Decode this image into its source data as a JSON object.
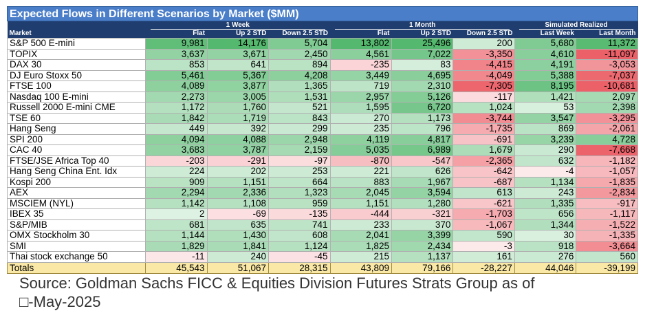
{
  "title": "Expected Flows in Different Scenarios by Market ($MM)",
  "groups": [
    "1 Week",
    "1 Month",
    "Simulated Realized"
  ],
  "columns": [
    "Market",
    "Flat",
    "Up 2 STD",
    "Down 2.5 STD",
    "Flat",
    "Up 2 STD",
    "Down 2.5 STD",
    "Last Week",
    "Last Month"
  ],
  "rows": [
    {
      "market": "S&P 500 E-mini",
      "values": [
        "9,981",
        "14,176",
        "5,704",
        "13,802",
        "25,496",
        "200",
        "5,680",
        "11,372"
      ]
    },
    {
      "market": "TOPIX",
      "values": [
        "3,637",
        "3,671",
        "2,450",
        "4,561",
        "7,022",
        "-3,350",
        "4,610",
        "-11,097"
      ]
    },
    {
      "market": "DAX 30",
      "values": [
        "853",
        "641",
        "894",
        "-235",
        "83",
        "-4,415",
        "4,191",
        "-3,053"
      ]
    },
    {
      "market": "DJ Euro Stoxx 50",
      "values": [
        "5,461",
        "5,367",
        "4,208",
        "3,449",
        "4,695",
        "-4,049",
        "5,388",
        "-7,037"
      ]
    },
    {
      "market": "FTSE 100",
      "values": [
        "4,089",
        "3,877",
        "1,365",
        "719",
        "2,310",
        "-7,305",
        "8,195",
        "-10,681"
      ]
    },
    {
      "market": "Nasdaq 100 E-mini",
      "values": [
        "2,273",
        "3,005",
        "1,531",
        "2,957",
        "5,126",
        "-117",
        "1,421",
        "2,097"
      ]
    },
    {
      "market": "Russell 2000 E-mini CME",
      "values": [
        "1,172",
        "1,760",
        "521",
        "1,595",
        "6,720",
        "1,024",
        "53",
        "2,398"
      ]
    },
    {
      "market": "TSE 60",
      "values": [
        "1,842",
        "1,719",
        "843",
        "270",
        "1,173",
        "-3,744",
        "3,547",
        "-3,295"
      ]
    },
    {
      "market": "Hang Seng",
      "values": [
        "449",
        "392",
        "299",
        "235",
        "796",
        "-1,735",
        "869",
        "-2,061"
      ]
    },
    {
      "market": "SPI 200",
      "values": [
        "4,094",
        "4,088",
        "2,948",
        "4,119",
        "4,817",
        "-691",
        "3,239",
        "4,728"
      ]
    },
    {
      "market": "CAC 40",
      "values": [
        "3,683",
        "3,787",
        "2,159",
        "5,035",
        "6,989",
        "1,679",
        "290",
        "-7,668"
      ]
    },
    {
      "market": "FTSE/JSE Africa Top 40",
      "values": [
        "-203",
        "-291",
        "-97",
        "-870",
        "-547",
        "-2,365",
        "632",
        "-1,182"
      ]
    },
    {
      "market": "Hang Seng China Ent. Idx",
      "values": [
        "224",
        "202",
        "253",
        "221",
        "626",
        "-642",
        "-4",
        "-1,057"
      ]
    },
    {
      "market": "Kospi 200",
      "values": [
        "909",
        "1,151",
        "664",
        "883",
        "1,967",
        "-687",
        "1,134",
        "-1,835"
      ]
    },
    {
      "market": "AEX",
      "values": [
        "2,294",
        "2,336",
        "1,323",
        "2,045",
        "3,594",
        "613",
        "243",
        "-2,834"
      ]
    },
    {
      "market": "MSCIEM (NYL)",
      "values": [
        "1,142",
        "1,108",
        "959",
        "1,151",
        "1,280",
        "-621",
        "1,335",
        "-917"
      ]
    },
    {
      "market": "IBEX 35",
      "values": [
        "2",
        "-69",
        "-135",
        "-444",
        "-321",
        "-1,703",
        "656",
        "-1,117"
      ]
    },
    {
      "market": "S&P/MIB",
      "values": [
        "681",
        "635",
        "741",
        "233",
        "370",
        "-1,067",
        "1,344",
        "-1,522"
      ]
    },
    {
      "market": "OMX Stockholm 30",
      "values": [
        "1,144",
        "1,430",
        "608",
        "2,041",
        "3,399",
        "590",
        "30",
        "-1,335"
      ]
    },
    {
      "market": "SMI",
      "values": [
        "1,829",
        "1,841",
        "1,124",
        "1,825",
        "2,434",
        "-3",
        "918",
        "-3,664"
      ]
    },
    {
      "market": "Thai stock exchange 50",
      "values": [
        "-11",
        "240",
        "-45",
        "215",
        "1,137",
        "161",
        "276",
        "560"
      ]
    }
  ],
  "totals": {
    "market": "Totals",
    "values": [
      "45,543",
      "51,067",
      "28,315",
      "43,809",
      "79,166",
      "-28,227",
      "44,046",
      "-39,199"
    ]
  },
  "source_line1": "Source: Goldman Sachs FICC & Equities Division Futures Strats Group as of",
  "source_line2": "□-May-2025"
}
